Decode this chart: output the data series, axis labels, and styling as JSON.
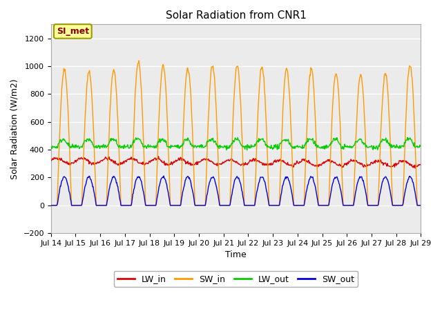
{
  "title": "Solar Radiation from CNR1",
  "xlabel": "Time",
  "ylabel": "Solar Radiation (W/m2)",
  "ylim": [
    -200,
    1300
  ],
  "yticks": [
    -200,
    0,
    200,
    400,
    600,
    800,
    1000,
    1200
  ],
  "xtick_labels": [
    "Jul 14",
    "Jul 15",
    "Jul 16",
    "Jul 17",
    "Jul 18",
    "Jul 19",
    "Jul 20",
    "Jul 21",
    "Jul 22",
    "Jul 23",
    "Jul 24",
    "Jul 25",
    "Jul 26",
    "Jul 27",
    "Jul 28",
    "Jul 29"
  ],
  "legend_labels": [
    "LW_in",
    "SW_in",
    "LW_out",
    "SW_out"
  ],
  "legend_colors": [
    "#dd0000",
    "#ff9900",
    "#00cc00",
    "#0000dd"
  ],
  "annotation_text": "SI_met",
  "annotation_bg": "#ffff99",
  "annotation_border": "#999900",
  "fig_bg": "#ffffff",
  "plot_bg": "#ebebeb",
  "grid_color": "#d8d8d8",
  "n_days": 15,
  "lw_in_base": 320,
  "lw_in_amp": 25,
  "lw_out_base": 420,
  "lw_out_amp": 55,
  "sw_in_peaks": [
    975,
    960,
    975,
    1030,
    1005,
    985,
    1005,
    1000,
    1000,
    980,
    980,
    950,
    940,
    945,
    1010
  ],
  "sw_out_peak": 205
}
